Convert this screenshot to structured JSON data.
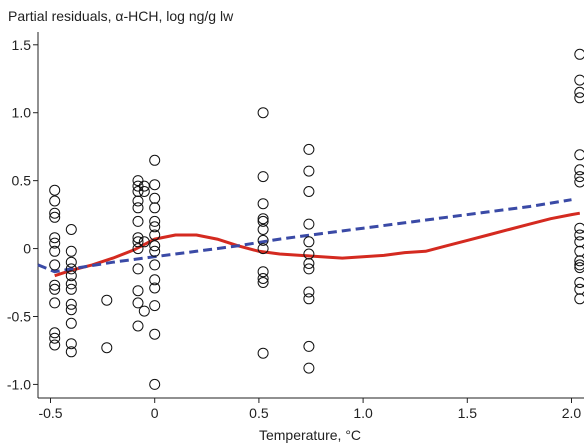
{
  "chart_data": {
    "type": "scatter",
    "ylabel": "Partial residuals, α-HCH, log ng/g lw",
    "xlabel": "Temperature, °C",
    "xlim": [
      -0.56,
      2.06
    ],
    "ylim": [
      -1.1,
      1.55
    ],
    "xticks": [
      -0.5,
      0,
      0.5,
      1.0,
      1.5,
      2.0
    ],
    "xtick_labels": [
      "-0.5",
      "0",
      "0.5",
      "1.0",
      "1.5",
      "2.0"
    ],
    "yticks": [
      1.5,
      1.0,
      0.5,
      0,
      -0.5,
      -1.0
    ],
    "ytick_labels": [
      "1.5",
      "1.0",
      "0.5",
      "0",
      "-0.5",
      "-1.0"
    ],
    "grid": false,
    "legend": "none",
    "points": [
      {
        "x": -0.48,
        "y": 0.43
      },
      {
        "x": -0.48,
        "y": 0.35
      },
      {
        "x": -0.48,
        "y": 0.26
      },
      {
        "x": -0.48,
        "y": 0.23
      },
      {
        "x": -0.48,
        "y": 0.08
      },
      {
        "x": -0.48,
        "y": 0.04
      },
      {
        "x": -0.48,
        "y": -0.02
      },
      {
        "x": -0.48,
        "y": -0.12
      },
      {
        "x": -0.48,
        "y": -0.27
      },
      {
        "x": -0.48,
        "y": -0.3
      },
      {
        "x": -0.48,
        "y": -0.4
      },
      {
        "x": -0.48,
        "y": -0.62
      },
      {
        "x": -0.48,
        "y": -0.66
      },
      {
        "x": -0.48,
        "y": -0.71
      },
      {
        "x": -0.4,
        "y": 0.14
      },
      {
        "x": -0.4,
        "y": -0.02
      },
      {
        "x": -0.4,
        "y": -0.1
      },
      {
        "x": -0.4,
        "y": -0.15
      },
      {
        "x": -0.4,
        "y": -0.2
      },
      {
        "x": -0.4,
        "y": -0.26
      },
      {
        "x": -0.4,
        "y": -0.3
      },
      {
        "x": -0.4,
        "y": -0.41
      },
      {
        "x": -0.4,
        "y": -0.45
      },
      {
        "x": -0.4,
        "y": -0.55
      },
      {
        "x": -0.4,
        "y": -0.7
      },
      {
        "x": -0.4,
        "y": -0.76
      },
      {
        "x": -0.23,
        "y": -0.38
      },
      {
        "x": -0.23,
        "y": -0.73
      },
      {
        "x": -0.08,
        "y": 0.5
      },
      {
        "x": -0.08,
        "y": 0.46
      },
      {
        "x": -0.08,
        "y": 0.42
      },
      {
        "x": -0.08,
        "y": 0.35
      },
      {
        "x": -0.08,
        "y": 0.3
      },
      {
        "x": -0.08,
        "y": 0.2
      },
      {
        "x": -0.08,
        "y": 0.08
      },
      {
        "x": -0.08,
        "y": 0.05
      },
      {
        "x": -0.08,
        "y": 0.0
      },
      {
        "x": -0.08,
        "y": -0.15
      },
      {
        "x": -0.08,
        "y": -0.31
      },
      {
        "x": -0.08,
        "y": -0.4
      },
      {
        "x": -0.08,
        "y": -0.57
      },
      {
        "x": -0.05,
        "y": 0.46
      },
      {
        "x": -0.05,
        "y": 0.42
      },
      {
        "x": -0.05,
        "y": 0.05
      },
      {
        "x": -0.05,
        "y": -0.46
      },
      {
        "x": 0.0,
        "y": 0.65
      },
      {
        "x": 0.0,
        "y": 0.47
      },
      {
        "x": 0.0,
        "y": 0.37
      },
      {
        "x": 0.0,
        "y": 0.3
      },
      {
        "x": 0.0,
        "y": 0.2
      },
      {
        "x": 0.0,
        "y": 0.16
      },
      {
        "x": 0.0,
        "y": 0.1
      },
      {
        "x": 0.0,
        "y": 0.02
      },
      {
        "x": 0.0,
        "y": -0.02
      },
      {
        "x": 0.0,
        "y": -0.12
      },
      {
        "x": 0.0,
        "y": -0.23
      },
      {
        "x": 0.0,
        "y": -0.29
      },
      {
        "x": 0.0,
        "y": -0.42
      },
      {
        "x": 0.0,
        "y": -0.63
      },
      {
        "x": 0.0,
        "y": -1.0
      },
      {
        "x": 0.52,
        "y": 1.0
      },
      {
        "x": 0.52,
        "y": 0.53
      },
      {
        "x": 0.52,
        "y": 0.33
      },
      {
        "x": 0.52,
        "y": 0.22
      },
      {
        "x": 0.52,
        "y": 0.2
      },
      {
        "x": 0.52,
        "y": 0.14
      },
      {
        "x": 0.52,
        "y": 0.06
      },
      {
        "x": 0.52,
        "y": 0.0
      },
      {
        "x": 0.52,
        "y": -0.17
      },
      {
        "x": 0.52,
        "y": -0.22
      },
      {
        "x": 0.52,
        "y": -0.25
      },
      {
        "x": 0.52,
        "y": -0.77
      },
      {
        "x": 0.74,
        "y": 0.73
      },
      {
        "x": 0.74,
        "y": 0.57
      },
      {
        "x": 0.74,
        "y": 0.42
      },
      {
        "x": 0.74,
        "y": 0.18
      },
      {
        "x": 0.74,
        "y": 0.05
      },
      {
        "x": 0.74,
        "y": -0.04
      },
      {
        "x": 0.74,
        "y": -0.11
      },
      {
        "x": 0.74,
        "y": -0.15
      },
      {
        "x": 0.74,
        "y": -0.32
      },
      {
        "x": 0.74,
        "y": -0.37
      },
      {
        "x": 0.74,
        "y": -0.72
      },
      {
        "x": 0.74,
        "y": -0.88
      },
      {
        "x": 2.04,
        "y": 1.43
      },
      {
        "x": 2.04,
        "y": 1.24
      },
      {
        "x": 2.04,
        "y": 1.15
      },
      {
        "x": 2.04,
        "y": 1.11
      },
      {
        "x": 2.04,
        "y": 0.69
      },
      {
        "x": 2.04,
        "y": 0.58
      },
      {
        "x": 2.04,
        "y": 0.53
      },
      {
        "x": 2.04,
        "y": 0.49
      },
      {
        "x": 2.04,
        "y": 0.15
      },
      {
        "x": 2.04,
        "y": 0.1
      },
      {
        "x": 2.04,
        "y": 0.05
      },
      {
        "x": 2.04,
        "y": -0.02
      },
      {
        "x": 2.04,
        "y": -0.09
      },
      {
        "x": 2.04,
        "y": -0.12
      },
      {
        "x": 2.04,
        "y": -0.14
      },
      {
        "x": 2.04,
        "y": -0.25
      },
      {
        "x": 2.04,
        "y": -0.3
      },
      {
        "x": 2.04,
        "y": -0.37
      }
    ],
    "lines": [
      {
        "style": "solid",
        "color": "#d42a20",
        "x": [
          -0.48,
          -0.4,
          -0.3,
          -0.2,
          -0.1,
          0.0,
          0.1,
          0.2,
          0.3,
          0.4,
          0.5,
          0.6,
          0.7,
          0.8,
          0.9,
          1.0,
          1.1,
          1.2,
          1.3,
          1.4,
          1.5,
          1.6,
          1.7,
          1.8,
          1.9,
          2.0,
          2.04
        ],
        "y": [
          -0.2,
          -0.16,
          -0.12,
          -0.07,
          -0.01,
          0.07,
          0.1,
          0.1,
          0.07,
          0.02,
          -0.02,
          -0.04,
          -0.05,
          -0.06,
          -0.07,
          -0.06,
          -0.05,
          -0.03,
          -0.02,
          0.02,
          0.06,
          0.1,
          0.14,
          0.18,
          0.22,
          0.25,
          0.26
        ]
      },
      {
        "style": "dashed",
        "color": "#3a4aa6",
        "x": [
          -0.56,
          -0.48,
          -0.4,
          -0.2,
          0.0,
          0.2,
          0.4,
          0.6,
          0.8,
          1.0,
          1.2,
          1.4,
          1.6,
          1.8,
          2.0
        ],
        "y": [
          -0.12,
          -0.17,
          -0.15,
          -0.1,
          -0.06,
          -0.02,
          0.02,
          0.07,
          0.11,
          0.15,
          0.19,
          0.23,
          0.27,
          0.31,
          0.36
        ]
      }
    ]
  }
}
